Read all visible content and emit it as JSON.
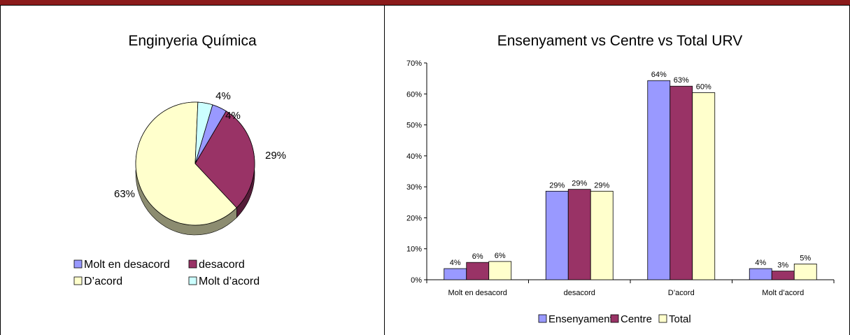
{
  "header": {
    "title": ""
  },
  "colors": {
    "purple_blue": "#9999ff",
    "maroon": "#993366",
    "cream": "#ffffcc",
    "light_cyan": "#ccffff",
    "bar_red": "#8b1b1b"
  },
  "chart_data": [
    {
      "type": "pie",
      "title": "Enginyeria Química",
      "categories": [
        "Molt en desacord",
        "desacord",
        "D'acord",
        "Molt d'acord"
      ],
      "values": [
        4,
        29,
        63,
        4
      ],
      "labels": [
        "4%",
        "29%",
        "63%",
        "4%"
      ],
      "colors": [
        "#9999ff",
        "#993366",
        "#ffffcc",
        "#ccffff"
      ],
      "legend": [
        "Molt en desacord",
        "desacord",
        "D’acord",
        "Molt d’acord"
      ],
      "legend_position": "bottom"
    },
    {
      "type": "bar",
      "title": "Ensenyament  vs  Centre  vs  Total URV",
      "categories": [
        "Molt en desacord",
        "desacord",
        "D’acord",
        "Molt d’acord"
      ],
      "series": [
        {
          "name": "Ensenyament",
          "color": "#9999ff",
          "values": [
            3.6,
            28.6,
            64.3,
            3.6
          ],
          "labels": [
            "4%",
            "29%",
            "64%",
            "4%"
          ]
        },
        {
          "name": "Centre",
          "color": "#993366",
          "values": [
            5.6,
            29.2,
            62.5,
            2.8
          ],
          "labels": [
            "6%",
            "29%",
            "63%",
            "3%"
          ]
        },
        {
          "name": "Total",
          "color": "#ffffcc",
          "values": [
            5.9,
            28.6,
            60.4,
            5.1
          ],
          "labels": [
            "6%",
            "29%",
            "60%",
            "5%"
          ]
        }
      ],
      "yticks": [
        "0%",
        "10%",
        "20%",
        "30%",
        "40%",
        "50%",
        "60%",
        "70%"
      ],
      "ylim": [
        0,
        70
      ],
      "grid": false,
      "legend_position": "bottom"
    }
  ]
}
